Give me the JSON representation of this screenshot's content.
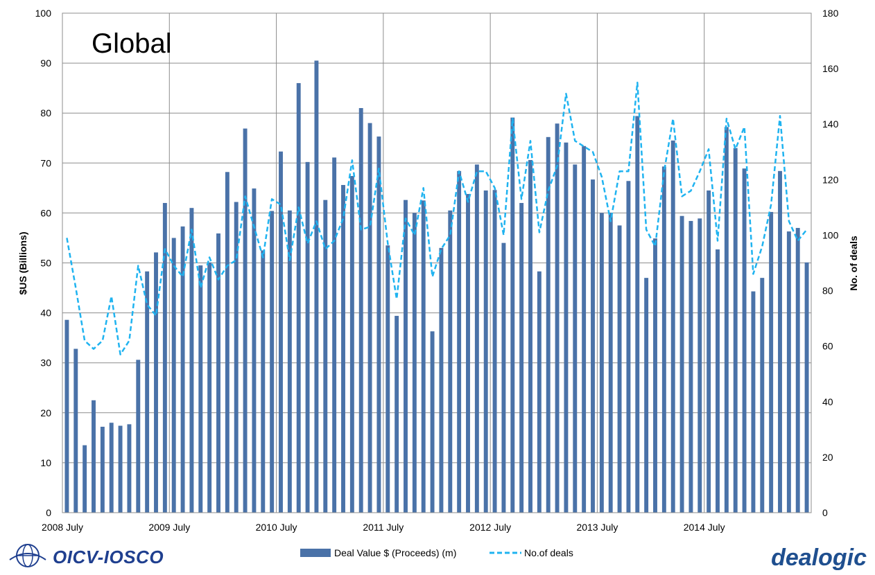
{
  "logos": {
    "iosco": "OICV-IOSCO",
    "dealogic": "dealogic"
  },
  "chart_data": {
    "type": "bar",
    "title": "Global",
    "ylabel": "$US (Billions)",
    "y2label": "No. of deals",
    "ylim": [
      0,
      100
    ],
    "y2lim": [
      0,
      180
    ],
    "yticks": [
      0,
      10,
      20,
      30,
      40,
      50,
      60,
      70,
      80,
      90,
      100
    ],
    "y2ticks": [
      0,
      20,
      40,
      60,
      80,
      100,
      120,
      140,
      160,
      180
    ],
    "xtick_labels": [
      "2008 July",
      "2009 July",
      "2010 July",
      "2011 July",
      "2012 July",
      "2013 July",
      "2014 July"
    ],
    "grid": true,
    "legend_position": "bottom",
    "series": [
      {
        "name": "Deal Value $ (Proceeds) (m)",
        "type": "bar",
        "axis": "left",
        "color": "#4a72a8",
        "values": [
          38.6,
          32.8,
          13.5,
          22.5,
          17.2,
          18.0,
          17.4,
          17.7,
          30.6,
          48.3,
          52.1,
          62.0,
          55.0,
          57.3,
          61.0,
          49.5,
          50.1,
          55.9,
          68.2,
          62.2,
          76.9,
          64.9,
          52.5,
          60.4,
          72.3,
          60.5,
          86.0,
          70.2,
          90.5,
          62.6,
          71.1,
          65.6,
          67.4,
          81.0,
          78.0,
          75.3,
          53.5,
          39.4,
          62.6,
          60.0,
          62.5,
          36.3,
          53.0,
          60.5,
          68.4,
          63.8,
          69.7,
          64.5,
          64.6,
          54.0,
          79.1,
          62.0,
          70.6,
          48.3,
          75.2,
          77.9,
          74.1,
          69.7,
          73.4,
          66.7,
          60.0,
          60.0,
          57.5,
          66.4,
          79.4,
          47.0,
          54.9,
          69.3,
          74.5,
          59.4,
          58.4,
          58.9,
          64.5,
          52.7,
          77.2,
          73.0,
          68.9,
          44.3,
          47.0,
          60.2,
          68.4,
          56.3,
          57.0,
          50.1
        ]
      },
      {
        "name": "No.of deals",
        "type": "line",
        "axis": "right",
        "color": "#1fb3f0",
        "dashed": true,
        "values": [
          99,
          81,
          62,
          59,
          62,
          78,
          57,
          62,
          89,
          75,
          71,
          95,
          89,
          85,
          102,
          81,
          92,
          84,
          89,
          91,
          114,
          103,
          92,
          113,
          111,
          91,
          110,
          97,
          105,
          95,
          98,
          106,
          127,
          102,
          103,
          124,
          97,
          77,
          106,
          100,
          117,
          85,
          95,
          100,
          123,
          112,
          123,
          123,
          117,
          100,
          142,
          113,
          134,
          101,
          116,
          125,
          151,
          134,
          132,
          130,
          121,
          105,
          123,
          123,
          155,
          102,
          96,
          123,
          142,
          114,
          116,
          123,
          131,
          98,
          142,
          131,
          139,
          86,
          96,
          111,
          143,
          105,
          98,
          102
        ]
      }
    ]
  }
}
